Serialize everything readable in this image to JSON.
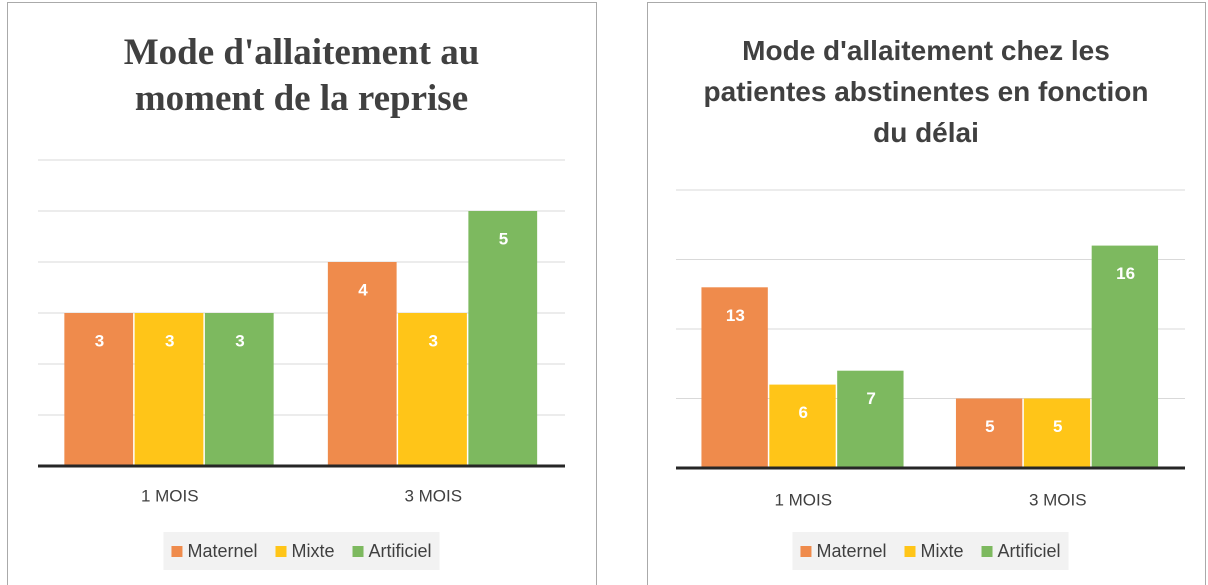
{
  "chart_data": [
    {
      "type": "bar",
      "title": "Mode d'allaitement au moment de la reprise",
      "categories": [
        "1 MOIS",
        "3 MOIS"
      ],
      "series": [
        {
          "name": "Maternel",
          "color": "#ef8b4c",
          "values": [
            3,
            4
          ]
        },
        {
          "name": "Mixte",
          "color": "#ffc518",
          "values": [
            3,
            3
          ]
        },
        {
          "name": "Artificiel",
          "color": "#7db95f",
          "values": [
            3,
            5
          ]
        }
      ],
      "ylim": [
        0,
        6
      ],
      "yticks": [
        0,
        1,
        2,
        3,
        4,
        5,
        6
      ],
      "grid": true,
      "legend": "bottom"
    },
    {
      "type": "bar",
      "title": "Mode d'allaitement chez les patientes abstinentes en fonction du délai",
      "categories": [
        "1 MOIS",
        "3 MOIS"
      ],
      "series": [
        {
          "name": "Maternel",
          "color": "#ef8b4c",
          "values": [
            13,
            5
          ]
        },
        {
          "name": "Mixte",
          "color": "#ffc518",
          "values": [
            6,
            5
          ]
        },
        {
          "name": "Artificiel",
          "color": "#7db95f",
          "values": [
            7,
            16
          ]
        }
      ],
      "ylim": [
        0,
        20
      ],
      "yticks": [
        0,
        5,
        10,
        15,
        20
      ],
      "grid": true,
      "legend": "bottom"
    }
  ]
}
